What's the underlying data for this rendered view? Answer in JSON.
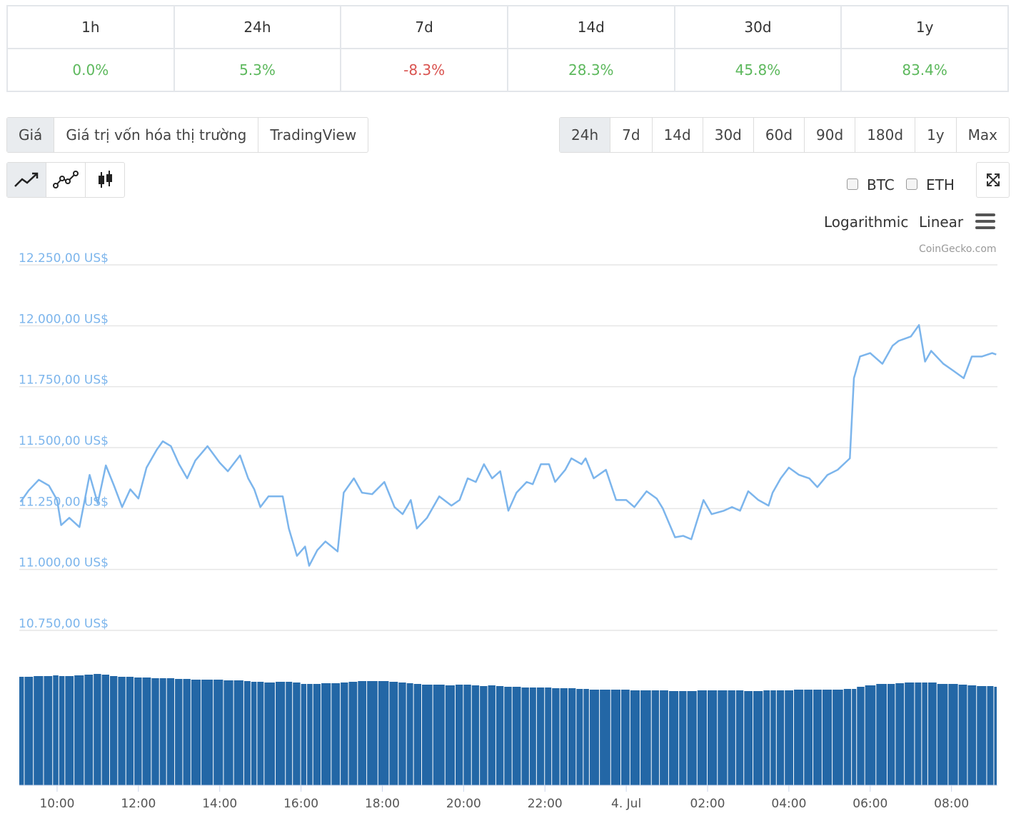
{
  "stats": {
    "headers": [
      "1h",
      "24h",
      "7d",
      "14d",
      "30d",
      "1y"
    ],
    "values": [
      "0.0%",
      "5.3%",
      "-8.3%",
      "28.3%",
      "45.8%",
      "83.4%"
    ]
  },
  "tabs": [
    "Giá",
    "Giá trị vốn hóa thị trường",
    "TradingView"
  ],
  "ranges": [
    "24h",
    "7d",
    "14d",
    "30d",
    "60d",
    "90d",
    "180d",
    "1y",
    "Max"
  ],
  "compare": [
    "BTC",
    "ETH"
  ],
  "scale_options": [
    "Logarithmic",
    "Linear"
  ],
  "credits": "CoinGecko.com",
  "chart_data": {
    "type": "line",
    "x": [
      9.1,
      9.3,
      9.55,
      9.8,
      10.0,
      10.1,
      10.3,
      10.55,
      10.8,
      11.0,
      11.2,
      11.4,
      11.6,
      11.8,
      12.0,
      12.2,
      12.45,
      12.6,
      12.8,
      13.0,
      13.2,
      13.4,
      13.7,
      14.0,
      14.2,
      14.5,
      14.7,
      14.85,
      15.0,
      15.2,
      15.55,
      15.7,
      15.9,
      16.1,
      16.2,
      16.4,
      16.6,
      16.9,
      17.05,
      17.3,
      17.5,
      17.75,
      18.05,
      18.3,
      18.5,
      18.7,
      18.85,
      19.1,
      19.4,
      19.7,
      19.9,
      20.1,
      20.3,
      20.5,
      20.7,
      20.9,
      21.1,
      21.3,
      21.55,
      21.7,
      21.9,
      22.1,
      22.25,
      22.5,
      22.65,
      22.9,
      23.0,
      23.2,
      23.5,
      23.75,
      24.0,
      24.2,
      24.5,
      24.75,
      24.9,
      25.2,
      25.4,
      25.6,
      25.9,
      26.1,
      26.4,
      26.6,
      26.8,
      27.0,
      27.25,
      27.5,
      27.6,
      27.8,
      28.0,
      28.25,
      28.5,
      28.7,
      28.95,
      29.2,
      29.5,
      29.6,
      29.75,
      30.0,
      30.3,
      30.55,
      30.7,
      31.0,
      31.2,
      31.35,
      31.5,
      31.8,
      32.05,
      32.3,
      32.5,
      32.75,
      33.0,
      33.1
    ],
    "series": [
      {
        "color": "#7cb5ec",
        "values": [
          11277,
          11324,
          11368,
          11344,
          11285,
          11182,
          11212,
          11174,
          11388,
          11271,
          11427,
          11344,
          11256,
          11329,
          11291,
          11418,
          11491,
          11526,
          11506,
          11432,
          11374,
          11447,
          11506,
          11438,
          11403,
          11468,
          11374,
          11329,
          11256,
          11300,
          11300,
          11168,
          11056,
          11094,
          11015,
          11079,
          11115,
          11074,
          11315,
          11374,
          11315,
          11309,
          11359,
          11256,
          11227,
          11285,
          11168,
          11212,
          11300,
          11262,
          11285,
          11374,
          11359,
          11432,
          11374,
          11403,
          11241,
          11315,
          11359,
          11350,
          11432,
          11432,
          11359,
          11409,
          11456,
          11432,
          11456,
          11374,
          11409,
          11285,
          11285,
          11256,
          11321,
          11291,
          11250,
          11132,
          11138,
          11124,
          11285,
          11227,
          11241,
          11256,
          11241,
          11321,
          11285,
          11262,
          11315,
          11374,
          11418,
          11388,
          11374,
          11338,
          11388,
          11409,
          11456,
          11785,
          11874,
          11888,
          11844,
          11918,
          11938,
          11956,
          12003,
          11853,
          11897,
          11844,
          11815,
          11785,
          11874,
          11874,
          11888,
          11882
        ]
      }
    ],
    "volume": {
      "color": "#2367a6",
      "ylim": [
        0,
        160
      ],
      "values": [
        152,
        152,
        153,
        153,
        154,
        153,
        153,
        154,
        155,
        156,
        155,
        153,
        152,
        152,
        151,
        151,
        150,
        150,
        150,
        149,
        149,
        148,
        148,
        148,
        147,
        147,
        146,
        145,
        145,
        144,
        145,
        145,
        144,
        142,
        142,
        142,
        143,
        143,
        144,
        145,
        146,
        146,
        146,
        145,
        144,
        143,
        142,
        141,
        141,
        140,
        141,
        141,
        140,
        139,
        140,
        139,
        138,
        138,
        137,
        137,
        137,
        137,
        136,
        136,
        136,
        135,
        135,
        134,
        134,
        134,
        134,
        133,
        133,
        133,
        133,
        132,
        132,
        132,
        133,
        133,
        133,
        133,
        133,
        132,
        132,
        133,
        133,
        133,
        133,
        134,
        134,
        134,
        134,
        134,
        135,
        135,
        138,
        140,
        142,
        142,
        143,
        144,
        144,
        144,
        144,
        142,
        142,
        141,
        140,
        139,
        139,
        138
      ]
    },
    "xlim": [
      9.07,
      33.13
    ],
    "xticks": [
      {
        "value": 10,
        "label": "10:00"
      },
      {
        "value": 12,
        "label": "12:00"
      },
      {
        "value": 14,
        "label": "14:00"
      },
      {
        "value": 16,
        "label": "16:00"
      },
      {
        "value": 18,
        "label": "18:00"
      },
      {
        "value": 20,
        "label": "20:00"
      },
      {
        "value": 22,
        "label": "22:00"
      },
      {
        "value": 24,
        "label": "4. Jul"
      },
      {
        "value": 26,
        "label": "02:00"
      },
      {
        "value": 28,
        "label": "04:00"
      },
      {
        "value": 30,
        "label": "06:00"
      },
      {
        "value": 32,
        "label": "08:00"
      }
    ],
    "ylim": [
      10750,
      12250
    ],
    "yticks": [
      {
        "value": 12250,
        "label": "12.250,00 US$"
      },
      {
        "value": 12000,
        "label": "12.000,00 US$"
      },
      {
        "value": 11750,
        "label": "11.750,00 US$"
      },
      {
        "value": 11500,
        "label": "11.500,00 US$"
      },
      {
        "value": 11250,
        "label": "11.250,00 US$"
      },
      {
        "value": 11000,
        "label": "11.000,00 US$"
      },
      {
        "value": 10750,
        "label": "10.750,00 US$"
      }
    ],
    "grid": true
  }
}
